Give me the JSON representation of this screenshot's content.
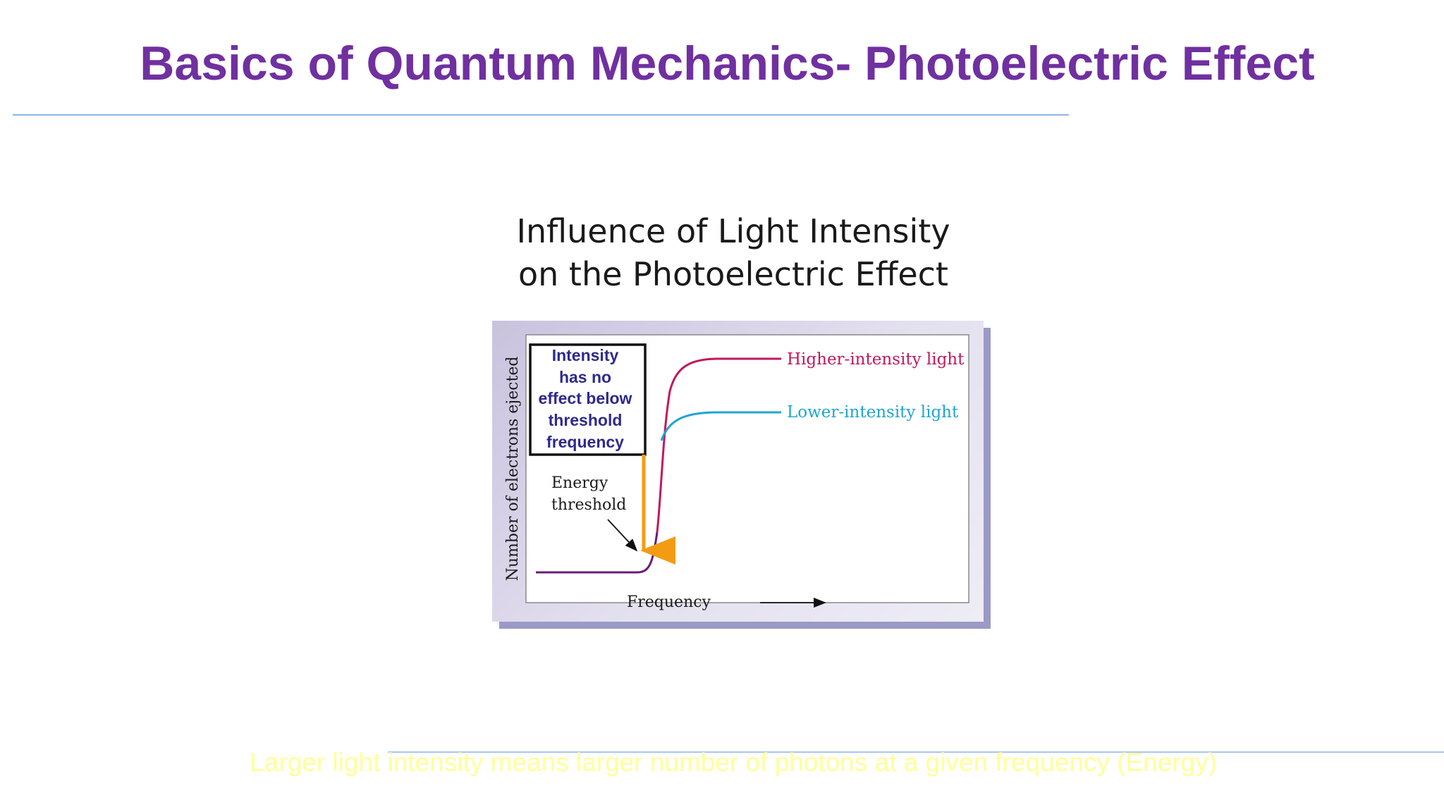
{
  "slide": {
    "title": "Basics of Quantum Mechanics- Photoelectric Effect",
    "footer_note": "Larger light intensity means larger number of photons at a given frequency (Energy)"
  },
  "diagram": {
    "title_line1": "Influence of Light Intensity",
    "title_line2": "on the Photoelectric Effect",
    "y_axis_label": "Number of electrons ejected",
    "x_axis_label": "Frequency",
    "box_lines": [
      "Intensity",
      "has no",
      "effect below",
      "threshold",
      "frequency"
    ],
    "threshold_lines": [
      "Energy",
      "threshold"
    ],
    "curve_high_label": "Higher-intensity light",
    "curve_low_label": "Lower-intensity light"
  },
  "colors": {
    "title": "#7030a0",
    "footer": "#ffff99",
    "box_text": "#2e2a8c",
    "curve_high": "#c2185b",
    "curve_low": "#1ea5d2",
    "curve_base": "#6a1b7a",
    "threshold_arrow": "#f39c12"
  }
}
